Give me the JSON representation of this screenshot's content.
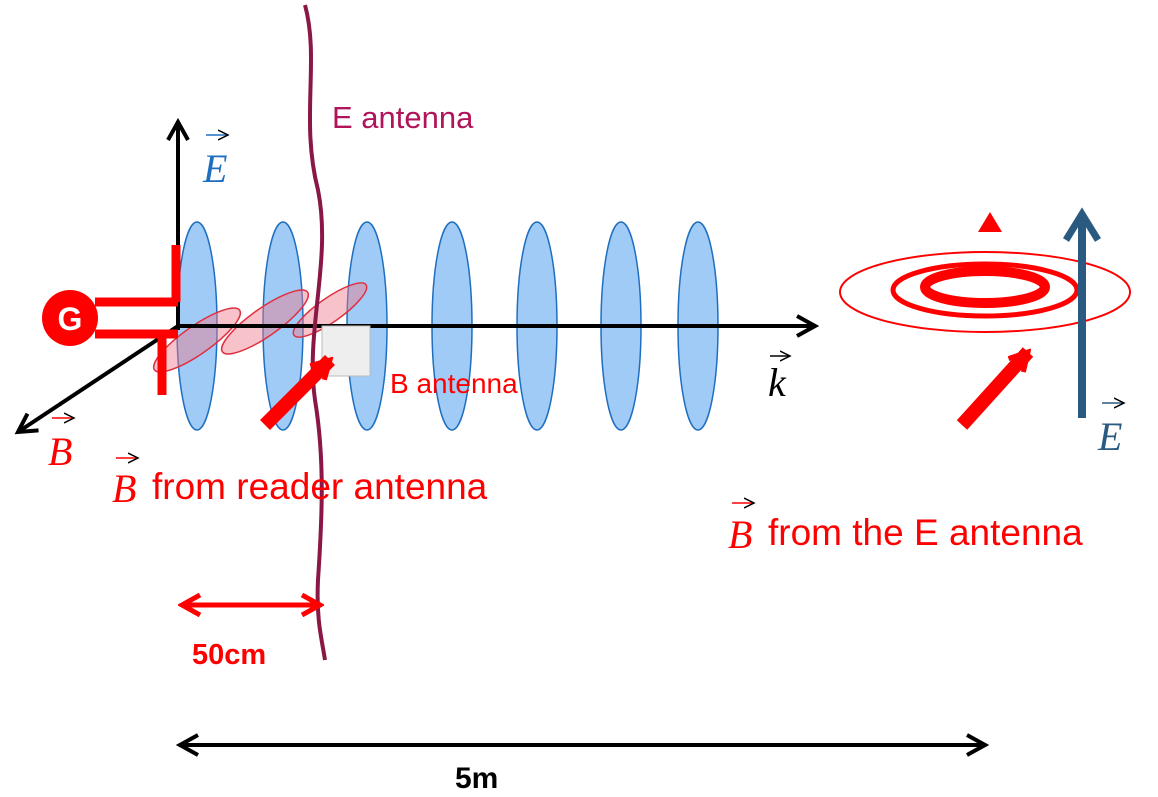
{
  "labels": {
    "e_antenna": "E antenna",
    "e_axis": "E",
    "b_axis": "B",
    "k_axis": "k",
    "b_antenna": "B antenna",
    "generator": "G",
    "reader_caption": {
      "symbol": "B",
      "text": "from reader antenna"
    },
    "e_antenna_caption": {
      "symbol": "B",
      "text": "from the E antenna"
    },
    "e_field_right": "E",
    "distance_small": "50cm",
    "distance_large": "5m"
  }
}
